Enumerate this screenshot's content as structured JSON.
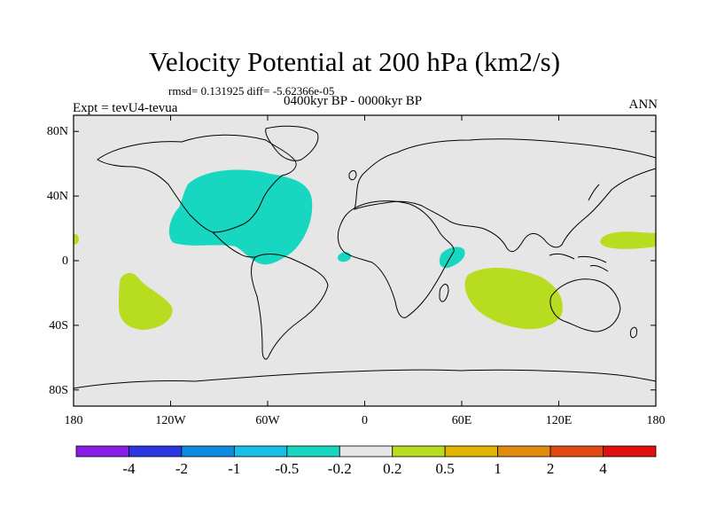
{
  "title": "Velocity Potential at 200 hPa (km2/s)",
  "stats": "rmsd= 0.131925 diff= -5.62366e-05",
  "experiment": "Expt = tevU4-tevua",
  "period": "0400kyr BP - 0000kyr BP",
  "season": "ANN",
  "map": {
    "lon_range": [
      -180,
      180
    ],
    "lat_range": [
      -90,
      90
    ],
    "x_ticks": [
      "180",
      "120W",
      "60W",
      "0",
      "60E",
      "120E",
      "180"
    ],
    "x_tick_lons": [
      -180,
      -120,
      -60,
      0,
      60,
      120,
      180
    ],
    "y_ticks": [
      "80N",
      "40N",
      "0",
      "40S",
      "80S"
    ],
    "y_tick_lats": [
      80,
      40,
      0,
      -40,
      -80
    ],
    "background_color": "#e6e6e6",
    "anomaly_regions": [
      {
        "name": "north-atlantic-americas",
        "bin": "-0.5 to -0.2",
        "color": "#17d7c0"
      },
      {
        "name": "east-africa",
        "bin": "-0.5 to -0.2",
        "color": "#17d7c0"
      },
      {
        "name": "gulf-of-guinea",
        "bin": "-0.5 to -0.2",
        "color": "#17d7c0"
      },
      {
        "name": "southern-indian-ocean",
        "bin": "0.2 to 0.5",
        "color": "#b8dc1f"
      },
      {
        "name": "south-pacific",
        "bin": "0.2 to 0.5",
        "color": "#b8dc1f"
      },
      {
        "name": "western-pacific",
        "bin": "0.2 to 0.5",
        "color": "#b8dc1f"
      }
    ]
  },
  "colorbar": {
    "colors": [
      "#8a1ee6",
      "#2a36e0",
      "#0e8ae0",
      "#17bfe6",
      "#17d7c0",
      "#e6e6e6",
      "#b8dc1f",
      "#e0b400",
      "#e08a10",
      "#e04a10",
      "#e01010"
    ],
    "labels": [
      "-4",
      "-2",
      "-1",
      "-0.5",
      "-0.2",
      "0.2",
      "0.5",
      "1",
      "2",
      "4"
    ]
  }
}
